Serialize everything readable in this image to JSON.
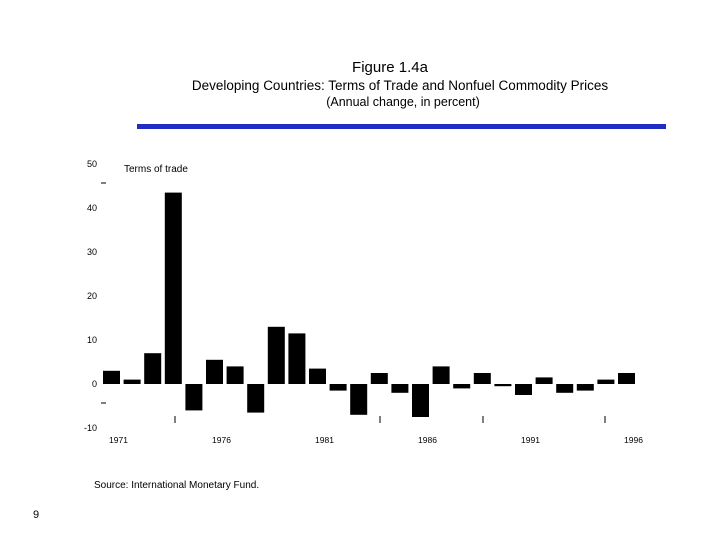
{
  "chart_data": {
    "type": "bar",
    "figure_label": "Figure 1.4a",
    "title": "Developing Countries: Terms of Trade and Nonfuel Commodity Prices",
    "subtitle": "(Annual change, in percent)",
    "series_label": "Terms of trade",
    "categories": [
      "1971",
      "1972",
      "1973",
      "1974",
      "1975",
      "1976",
      "1977",
      "1978",
      "1979",
      "1980",
      "1981",
      "1982",
      "1983",
      "1984",
      "1985",
      "1986",
      "1987",
      "1988",
      "1989",
      "1990",
      "1991",
      "1992",
      "1993",
      "1994",
      "1995",
      "1996"
    ],
    "values": [
      3.0,
      1.0,
      7.0,
      43.5,
      -6.0,
      5.5,
      4.0,
      -6.5,
      13.0,
      11.5,
      3.5,
      -1.5,
      -7.0,
      2.5,
      -2.0,
      -7.5,
      4.0,
      -1.0,
      2.5,
      -0.5,
      -2.5,
      1.5,
      -2.0,
      -1.5,
      1.0,
      2.5
    ],
    "x_tick_labels": [
      "1971",
      "1976",
      "1981",
      "1986",
      "1991",
      "1996"
    ],
    "y_tick_labels": [
      "50",
      "40",
      "30",
      "20",
      "10",
      "0",
      "-10"
    ],
    "ylim": [
      -10,
      50
    ],
    "xlabel": "",
    "ylabel": "",
    "grid": false
  },
  "source": "Source: International Monetary Fund.",
  "page_number": "9",
  "colors": {
    "bar": "#000000",
    "rule": "#1f2dc4"
  }
}
